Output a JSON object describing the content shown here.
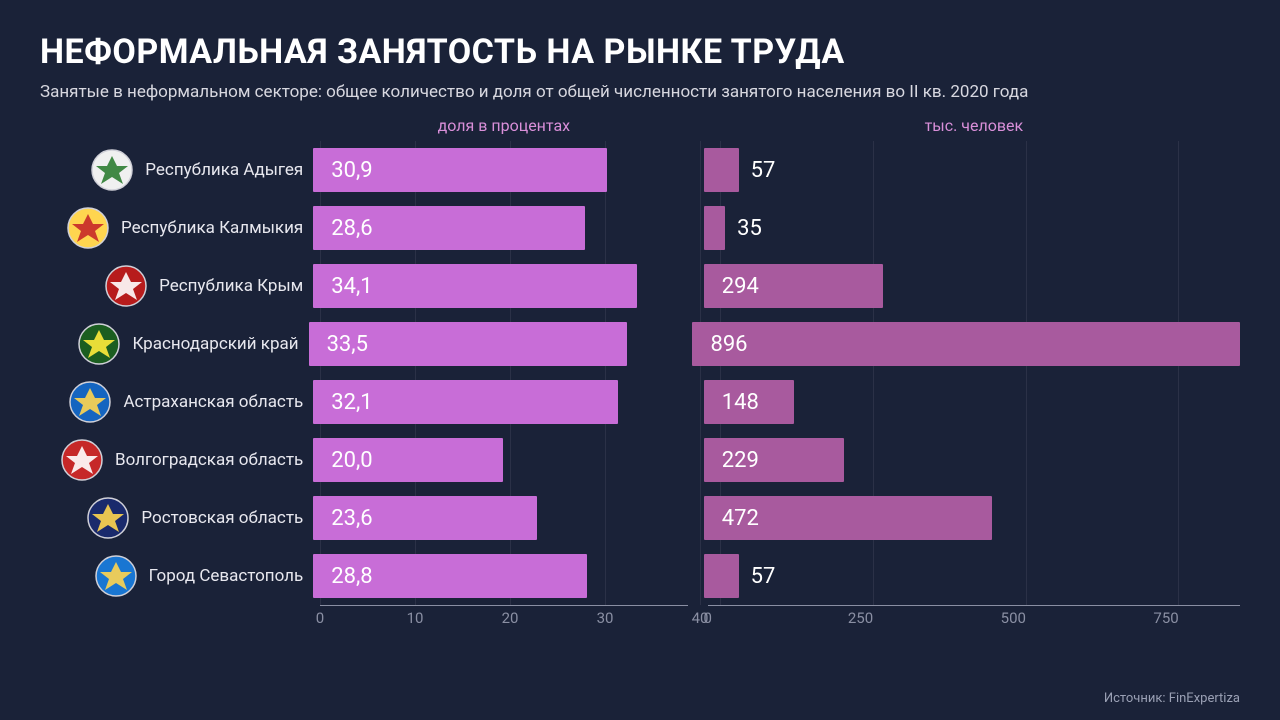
{
  "background_color": "#1a2238",
  "title": "НЕФОРМАЛЬНАЯ ЗАНЯТОСТЬ НА РЫНКЕ ТРУДА",
  "title_color": "#ffffff",
  "title_fontsize": 34,
  "subtitle": "Занятые в неформальном секторе: общее количество и доля от общей численности занятого населения во II кв. 2020 года",
  "subtitle_color": "#d8d8e0",
  "subtitle_fontsize": 17,
  "left_chart": {
    "header": "доля в процентах",
    "header_color": "#d98fd9",
    "header_fontsize": 16,
    "bar_color": "#c86dd7",
    "value_color": "#ffffff",
    "value_fontsize": 22,
    "xmax": 40,
    "ticks": [
      0,
      10,
      20,
      30,
      40
    ]
  },
  "right_chart": {
    "header": "тыс. человек",
    "header_color": "#d98fd9",
    "header_fontsize": 16,
    "bar_color": "#a85a9e",
    "value_color": "#ffffff",
    "value_fontsize": 22,
    "xmax": 900,
    "ticks": [
      0,
      250,
      500,
      750
    ]
  },
  "axis_color": "#8a8fa3",
  "axis_fontsize": 15,
  "grid_color": "#8a8fa3",
  "region_label_color": "#e8e8ef",
  "region_label_fontsize": 17,
  "emblem_border": "#d0d0d8",
  "rows": [
    {
      "region": "Республика Адыгея",
      "pct": "30,9",
      "pct_num": 30.9,
      "thousands": "57",
      "thousands_num": 57,
      "emblem_bg": "#f0f0f0",
      "emblem_fg": "#2e7d32"
    },
    {
      "region": "Республика Калмыкия",
      "pct": "28,6",
      "pct_num": 28.6,
      "thousands": "35",
      "thousands_num": 35,
      "emblem_bg": "#ffd54f",
      "emblem_fg": "#c62828"
    },
    {
      "region": "Республика Крым",
      "pct": "34,1",
      "pct_num": 34.1,
      "thousands": "294",
      "thousands_num": 294,
      "emblem_bg": "#b71c1c",
      "emblem_fg": "#ffffff"
    },
    {
      "region": "Краснодарский край",
      "pct": "33,5",
      "pct_num": 33.5,
      "thousands": "896",
      "thousands_num": 896,
      "emblem_bg": "#1b5e20",
      "emblem_fg": "#ffeb3b"
    },
    {
      "region": "Астраханская область",
      "pct": "32,1",
      "pct_num": 32.1,
      "thousands": "148",
      "thousands_num": 148,
      "emblem_bg": "#1565c0",
      "emblem_fg": "#ffd54f"
    },
    {
      "region": "Волгоградская область",
      "pct": "20,0",
      "pct_num": 20.0,
      "thousands": "229",
      "thousands_num": 229,
      "emblem_bg": "#c62828",
      "emblem_fg": "#ffffff"
    },
    {
      "region": "Ростовская область",
      "pct": "23,6",
      "pct_num": 23.6,
      "thousands": "472",
      "thousands_num": 472,
      "emblem_bg": "#1a2a6c",
      "emblem_fg": "#ffd54f"
    },
    {
      "region": "Город Севастополь",
      "pct": "28,8",
      "pct_num": 28.8,
      "thousands": "57",
      "thousands_num": 57,
      "emblem_bg": "#1976d2",
      "emblem_fg": "#ffd54f"
    }
  ],
  "source_label": "Источник: FinExpertiza",
  "source_color": "#9aa0b4",
  "source_fontsize": 13
}
